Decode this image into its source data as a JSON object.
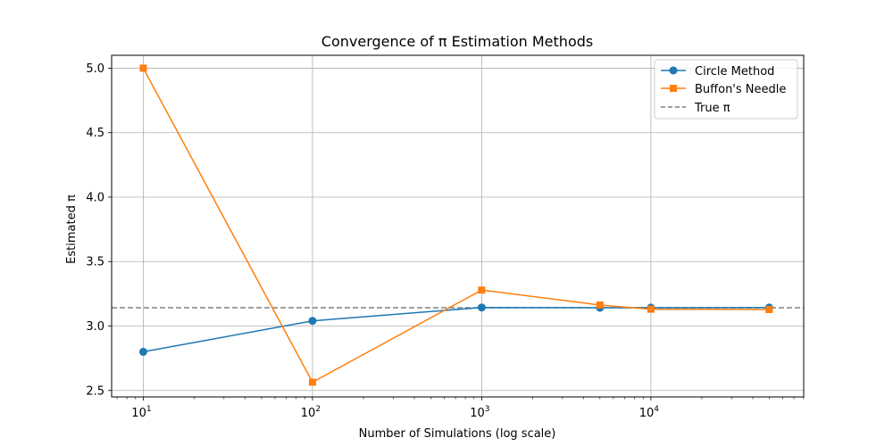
{
  "chart_data": {
    "type": "line",
    "title": "Convergence of π Estimation Methods",
    "xlabel": "Number of Simulations (log scale)",
    "ylabel": "Estimated π",
    "xscale": "log",
    "xlim": [
      6.5,
      80000
    ],
    "ylim": [
      2.45,
      5.1
    ],
    "yticks": [
      "2.5",
      "3.0",
      "3.5",
      "4.0",
      "4.5",
      "5.0"
    ],
    "xticks": [
      {
        "value": 10,
        "base": "10",
        "exp": "1"
      },
      {
        "value": 100,
        "base": "10",
        "exp": "2"
      },
      {
        "value": 1000,
        "base": "10",
        "exp": "3"
      },
      {
        "value": 10000,
        "base": "10",
        "exp": "4"
      }
    ],
    "grid": true,
    "legend_position": "top-right",
    "series": [
      {
        "name": "Circle Method",
        "color": "#1f77b4",
        "marker": "circle",
        "x": [
          10,
          100,
          1000,
          5000,
          10000,
          50000
        ],
        "y": [
          2.8,
          3.04,
          3.144,
          3.142,
          3.1428,
          3.1433
        ]
      },
      {
        "name": "Buffon's Needle",
        "color": "#ff7f0e",
        "marker": "square",
        "x": [
          10,
          100,
          1000,
          5000,
          10000,
          50000
        ],
        "y": [
          5.0,
          2.564,
          3.279,
          3.163,
          3.131,
          3.128
        ]
      }
    ],
    "reference_line": {
      "name": "True π",
      "y": 3.14159,
      "color": "#808080",
      "style": "dashed"
    }
  }
}
